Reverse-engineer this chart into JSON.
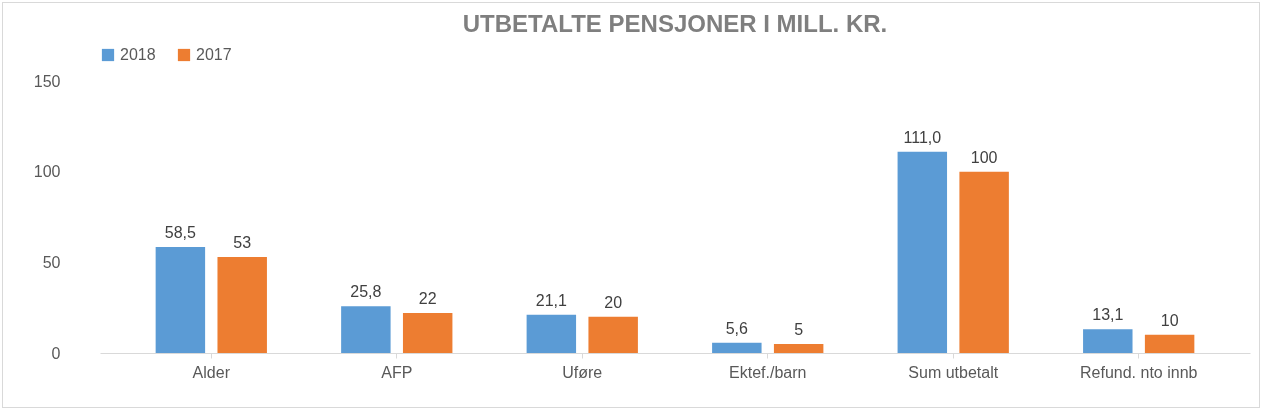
{
  "chart_data": {
    "type": "bar",
    "title": "UTBETALTE PENSJONER I MILL. KR.",
    "categories": [
      "Alder",
      "AFP",
      "Uføre",
      "Ektef./barn",
      "Sum utbetalt",
      "Refund. nto innb"
    ],
    "series": [
      {
        "name": "2018",
        "color": "#5b9bd5",
        "values": [
          58.5,
          25.8,
          21.1,
          5.6,
          111.0,
          13.1
        ],
        "value_labels": [
          "58,5",
          "25,8",
          "21,1",
          "5,6",
          "111,0",
          "13,1"
        ]
      },
      {
        "name": "2017",
        "color": "#ed7d31",
        "values": [
          53,
          22,
          20,
          5,
          100,
          10
        ],
        "value_labels": [
          "53",
          "22",
          "20",
          "5",
          "100",
          "10"
        ]
      }
    ],
    "ylim": [
      0,
      150
    ],
    "yticks": [
      0,
      50,
      100,
      150
    ],
    "grid": false,
    "legend": "top"
  }
}
